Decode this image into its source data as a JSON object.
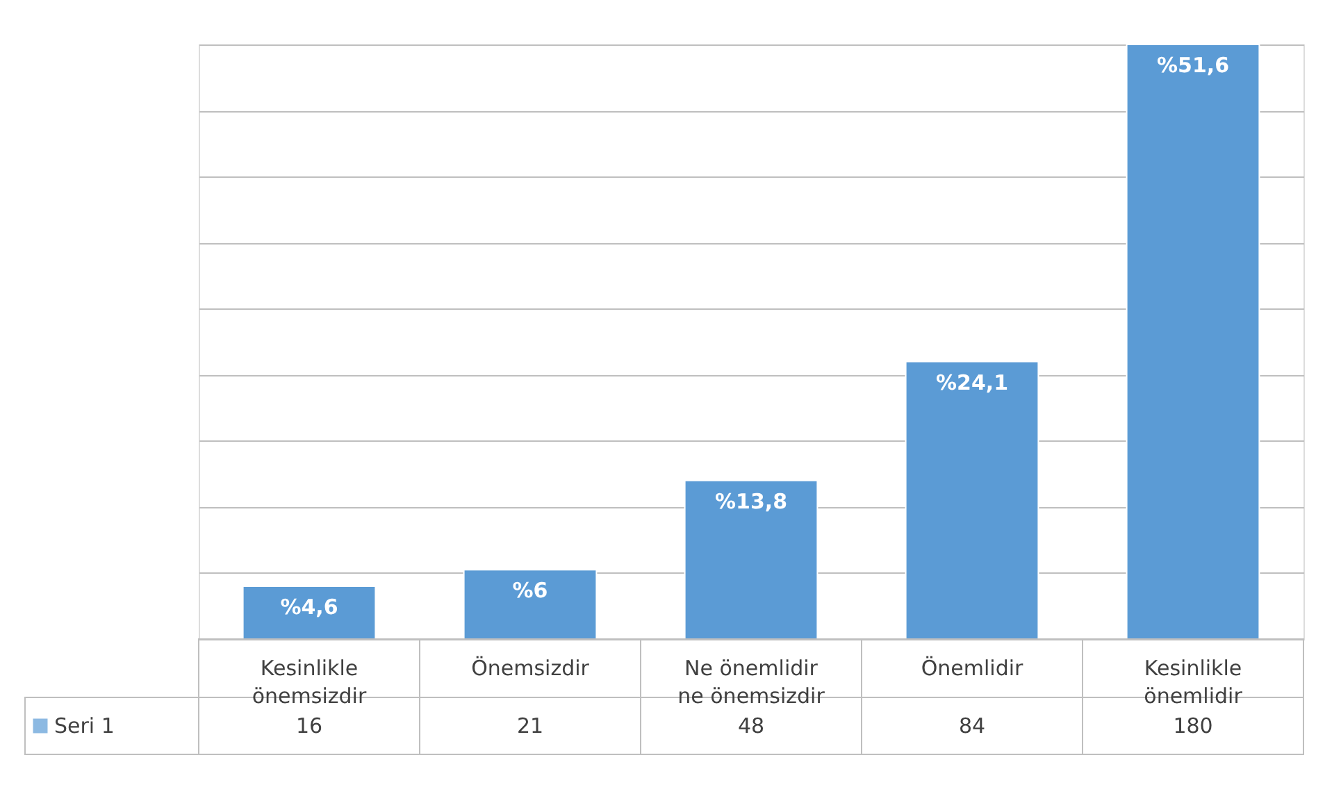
{
  "chart_data": {
    "type": "bar",
    "categories": [
      "Kesinlikle önemsizdir",
      "Önemsizdir",
      "Ne önemlidir ne önemsizdir",
      "Önemlidir",
      "Kesinlikle önemlidir"
    ],
    "series": [
      {
        "name": "Seri 1",
        "color": "#5b9bd5",
        "values": [
          16,
          21,
          48,
          84,
          180
        ]
      }
    ],
    "data_labels": true,
    "annotations": [
      {
        "text": "%4,6",
        "x": "Kesinlikle önemsizdir",
        "y": 16
      },
      {
        "text": "%6",
        "x": "Önemsizdir",
        "y": 21
      },
      {
        "text": "%13,8",
        "x": "Ne önemlidir ne önemsizdir",
        "y": 48
      },
      {
        "text": "%24,1",
        "x": "Önemlidir",
        "y": 84
      },
      {
        "text": "%51,6",
        "x": "Kesinlikle önemlidir",
        "y": 180
      }
    ],
    "grid": "y",
    "tick_labels": "x",
    "legend": "bottom"
  }
}
